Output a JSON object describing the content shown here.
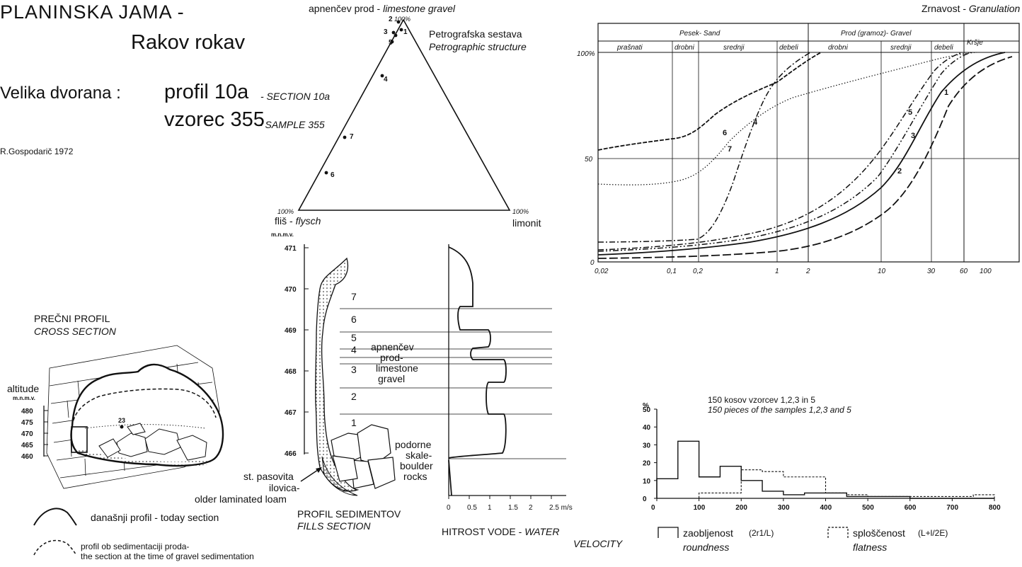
{
  "header": {
    "title_line1": "PLANINSKA JAMA -",
    "title_line2": "Rakov rokav",
    "location": "Velika dvorana :",
    "profile_label": "profil 10a",
    "profile_en": "- SECTION 10a",
    "sample_label": "vzorec 355",
    "sample_en": "- SAMPLE 355",
    "author": "R.Gospodarič 1972"
  },
  "ternary": {
    "top_label_si": "apnenčev prod -",
    "top_label_en": "limestone gravel",
    "top_pct": "100%",
    "left_pct": "100%",
    "right_pct": "100%",
    "left_label_si": "fliš -",
    "left_label_en": "flysch",
    "right_label": "limonit",
    "structure_si": "Petrografska sestava",
    "structure_en": "Petrographic structure",
    "points": [
      "2",
      "1",
      "3",
      "5",
      "4",
      "7",
      "6"
    ]
  },
  "cross_section": {
    "title_si": "PREČNI PROFIL",
    "title_en": "CROSS SECTION",
    "altitude": "altitude",
    "unit": "m.n.m.v.",
    "ticks": [
      "480",
      "475",
      "470",
      "465",
      "460"
    ],
    "marker": "23"
  },
  "legend": {
    "today_label": "današnji profil - today section",
    "sed_line1": "profil ob sedimentaciji proda-",
    "sed_line2": "the section at the time of gravel sedimentation"
  },
  "fills": {
    "unit": "m.n.m.v.",
    "ticks": [
      "471",
      "470",
      "469",
      "468",
      "467",
      "466"
    ],
    "layers": [
      "7",
      "6",
      "5",
      "4",
      "3",
      "2",
      "1"
    ],
    "gravel_si1": "apnenčev",
    "gravel_si2": "prod-",
    "gravel_en1": "limestone",
    "gravel_en2": "gravel",
    "boulder1": "podorne",
    "boulder2": "skale-",
    "boulder3": "boulder",
    "boulder4": "rocks",
    "loam1": "st. pasovita",
    "loam2": "ilovica-",
    "loam3": "older laminated loam",
    "title_si": "PROFIL SEDIMENTOV",
    "title_en": "FILLS SECTION"
  },
  "velocity": {
    "ticks": [
      "0",
      "0.5",
      "1",
      "1.5",
      "2",
      "2.5 m/s"
    ],
    "title_si": "HITROST VODE -",
    "title_en1": "WATER",
    "title_en2": "VELOCITY"
  },
  "granulation": {
    "title_si": "Zrnavost -",
    "title_en": "Granulation",
    "group_sand": "Pesek- Sand",
    "group_gravel": "Prod (gramoz)- Gravel",
    "group_rubble": "Kršje",
    "sub_sand": [
      "prašnati",
      "drobni",
      "srednji",
      "debeli"
    ],
    "sub_gravel": [
      "drobni",
      "srednji",
      "debeli"
    ],
    "y_ticks": [
      "100%",
      "50",
      "0"
    ],
    "x_ticks": [
      "0,02",
      "0,1",
      "0,2",
      "1",
      "2",
      "10",
      "30",
      "60",
      "100"
    ],
    "curve_labels": [
      "6",
      "4",
      "7",
      "5",
      "3",
      "1",
      "2"
    ]
  },
  "histogram": {
    "title_si": "150 kosov vzorcev 1,2,3 in 5",
    "title_en": "150 pieces of the samples 1,2,3 and 5",
    "y_unit": "%",
    "y_ticks": [
      "50",
      "40",
      "30",
      "20",
      "10",
      "0"
    ],
    "x_ticks": [
      "0",
      "100",
      "200",
      "300",
      "400",
      "500",
      "600",
      "700",
      "800"
    ],
    "roundness_si": "zaobljenost",
    "roundness_formula": "(2r1/L)",
    "roundness_en": "roundness",
    "flatness_si": "sploščenost",
    "flatness_formula": "(L+l/2E)",
    "flatness_en": "flatness"
  },
  "chart_data": {
    "type": "bar",
    "categories": [
      "0-50",
      "50-100",
      "100-150",
      "150-200",
      "200-250",
      "250-300",
      "300-350",
      "350-400",
      "400-450",
      "450-500",
      "500-550",
      "550-600",
      "600-650",
      "650-700",
      "700-750",
      "750-800"
    ],
    "series": [
      {
        "name": "zaobljenost",
        "values": [
          11,
          32,
          12,
          18,
          10,
          4,
          2,
          3,
          3,
          1,
          1,
          1,
          0,
          0,
          0,
          0
        ]
      },
      {
        "name": "sploščenost",
        "values": [
          0,
          0,
          3,
          3,
          16,
          15,
          12,
          12,
          3,
          2,
          1,
          1,
          1,
          1,
          1,
          2
        ]
      }
    ],
    "ylim": [
      0,
      50
    ],
    "xlim": [
      0,
      800
    ]
  }
}
